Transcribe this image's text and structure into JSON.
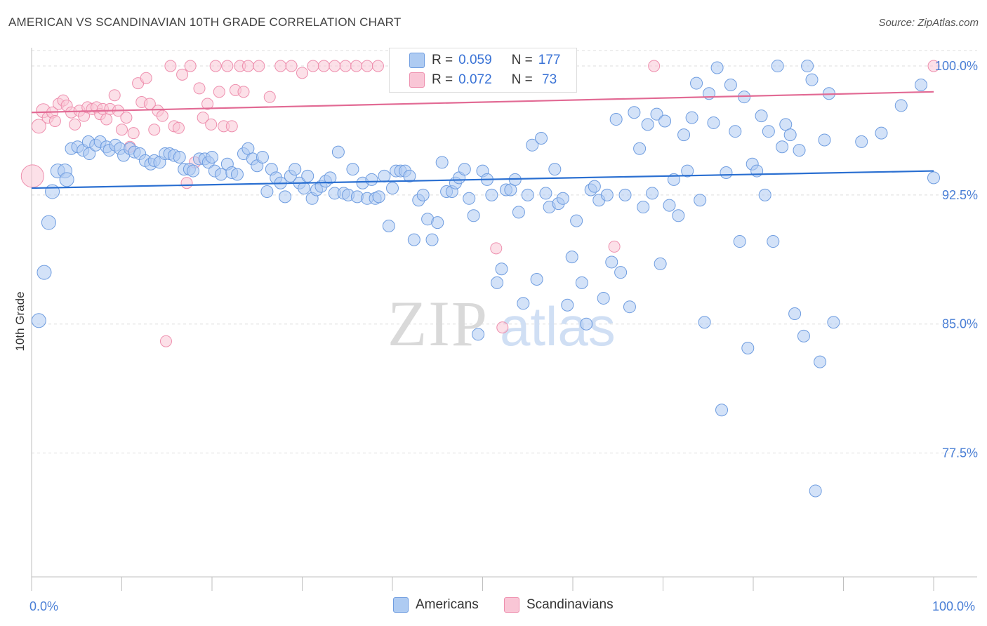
{
  "header": {
    "title": "AMERICAN VS SCANDINAVIAN 10TH GRADE CORRELATION CHART",
    "source": "Source: ZipAtlas.com"
  },
  "legend": {
    "rows": [
      {
        "r_label": "R =",
        "r_value": "0.059",
        "n_label": "N =",
        "n_value": "177"
      },
      {
        "r_label": "R =",
        "r_value": "0.072",
        "n_label": "N =",
        "n_value": " 73"
      }
    ],
    "bottom": [
      "Americans",
      "Scandinavians"
    ]
  },
  "colors": {
    "americans_fill": "#aecbf2",
    "americans_stroke": "#6f9de0",
    "americans_line": "#2a6fd1",
    "scandinavians_fill": "#f9c6d6",
    "scandinavians_stroke": "#ee8fae",
    "scandinavians_line": "#e26a94",
    "tick_label": "#4a7fd6"
  },
  "watermark": {
    "zip": "ZIP",
    "atlas": "atlas"
  },
  "chart_data": {
    "type": "scatter",
    "title": "AMERICAN VS SCANDINAVIAN 10TH GRADE CORRELATION CHART",
    "xlabel": "",
    "ylabel": "10th Grade",
    "xlim": [
      0,
      100
    ],
    "ylim": [
      70.3,
      100.9
    ],
    "x_tick_labels": [
      "0.0%",
      "100.0%"
    ],
    "y_ticks": [
      77.5,
      85.0,
      92.5,
      100.0
    ],
    "y_tick_labels": [
      "77.5%",
      "85.0%",
      "92.5%",
      "100.0%"
    ],
    "grid": "horizontal dashed",
    "legend_position": "top-center",
    "series": [
      {
        "name": "Americans",
        "r": 0.059,
        "n": 177,
        "trend": {
          "x": [
            0,
            100
          ],
          "y": [
            92.9,
            93.9
          ]
        },
        "points": [
          [
            0.8,
            85.2
          ],
          [
            1.4,
            88.0
          ],
          [
            1.9,
            90.9
          ],
          [
            2.3,
            92.7
          ],
          [
            2.9,
            93.9
          ],
          [
            3.7,
            93.9
          ],
          [
            3.9,
            93.4
          ],
          [
            4.4,
            95.2
          ],
          [
            5.1,
            95.3
          ],
          [
            5.7,
            95.1
          ],
          [
            6.3,
            95.6
          ],
          [
            6.4,
            94.9
          ],
          [
            7.1,
            95.4
          ],
          [
            7.6,
            95.6
          ],
          [
            8.3,
            95.3
          ],
          [
            8.6,
            95.1
          ],
          [
            9.3,
            95.4
          ],
          [
            9.8,
            95.2
          ],
          [
            10.2,
            94.8
          ],
          [
            10.9,
            95.2
          ],
          [
            11.4,
            95.0
          ],
          [
            12.0,
            94.9
          ],
          [
            12.6,
            94.5
          ],
          [
            13.2,
            94.3
          ],
          [
            13.6,
            94.5
          ],
          [
            14.2,
            94.4
          ],
          [
            14.8,
            94.9
          ],
          [
            15.3,
            94.9
          ],
          [
            15.8,
            94.8
          ],
          [
            16.4,
            94.7
          ],
          [
            16.9,
            94.0
          ],
          [
            17.5,
            94.0
          ],
          [
            17.9,
            93.9
          ],
          [
            18.6,
            94.6
          ],
          [
            19.2,
            94.6
          ],
          [
            19.6,
            94.4
          ],
          [
            20.0,
            94.7
          ],
          [
            20.3,
            93.9
          ],
          [
            21.0,
            93.7
          ],
          [
            21.7,
            94.3
          ],
          [
            22.2,
            93.8
          ],
          [
            22.8,
            93.7
          ],
          [
            23.5,
            94.9
          ],
          [
            24.0,
            95.2
          ],
          [
            24.5,
            94.6
          ],
          [
            25.0,
            94.2
          ],
          [
            25.6,
            94.7
          ],
          [
            26.1,
            92.7
          ],
          [
            26.6,
            94.0
          ],
          [
            27.1,
            93.5
          ],
          [
            27.6,
            93.2
          ],
          [
            28.1,
            92.4
          ],
          [
            28.7,
            93.6
          ],
          [
            29.2,
            94.0
          ],
          [
            29.7,
            93.2
          ],
          [
            30.2,
            92.9
          ],
          [
            30.6,
            93.6
          ],
          [
            31.1,
            92.3
          ],
          [
            31.6,
            92.8
          ],
          [
            32.1,
            93.0
          ],
          [
            32.6,
            93.3
          ],
          [
            33.1,
            93.5
          ],
          [
            33.6,
            92.6
          ],
          [
            34.0,
            95.0
          ],
          [
            34.6,
            92.6
          ],
          [
            35.1,
            92.5
          ],
          [
            35.6,
            94.0
          ],
          [
            36.1,
            92.4
          ],
          [
            36.7,
            93.2
          ],
          [
            37.2,
            92.3
          ],
          [
            37.7,
            93.4
          ],
          [
            38.1,
            92.3
          ],
          [
            38.5,
            92.4
          ],
          [
            39.1,
            93.6
          ],
          [
            39.6,
            90.7
          ],
          [
            40.0,
            92.9
          ],
          [
            40.4,
            93.9
          ],
          [
            40.9,
            93.9
          ],
          [
            41.4,
            93.9
          ],
          [
            41.9,
            93.6
          ],
          [
            42.4,
            89.9
          ],
          [
            42.9,
            92.2
          ],
          [
            43.4,
            92.5
          ],
          [
            43.9,
            91.1
          ],
          [
            44.4,
            89.9
          ],
          [
            45.0,
            90.9
          ],
          [
            45.5,
            94.4
          ],
          [
            46.0,
            92.7
          ],
          [
            46.6,
            92.7
          ],
          [
            47.0,
            93.2
          ],
          [
            47.4,
            93.5
          ],
          [
            48.0,
            94.0
          ],
          [
            48.5,
            92.3
          ],
          [
            49.0,
            91.3
          ],
          [
            49.5,
            84.4
          ],
          [
            50.0,
            93.9
          ],
          [
            50.5,
            93.4
          ],
          [
            51.0,
            92.5
          ],
          [
            51.6,
            87.4
          ],
          [
            52.1,
            88.2
          ],
          [
            52.6,
            92.8
          ],
          [
            53.1,
            92.8
          ],
          [
            53.6,
            93.4
          ],
          [
            54.0,
            91.5
          ],
          [
            54.5,
            86.2
          ],
          [
            55.0,
            92.5
          ],
          [
            55.5,
            95.4
          ],
          [
            56.0,
            87.6
          ],
          [
            56.5,
            95.8
          ],
          [
            57.0,
            92.6
          ],
          [
            57.4,
            91.8
          ],
          [
            58.0,
            94.0
          ],
          [
            58.4,
            92.0
          ],
          [
            58.9,
            92.3
          ],
          [
            59.4,
            86.1
          ],
          [
            59.9,
            88.9
          ],
          [
            60.4,
            91.0
          ],
          [
            61.0,
            87.4
          ],
          [
            61.5,
            85.0
          ],
          [
            62.0,
            92.8
          ],
          [
            62.4,
            93.0
          ],
          [
            62.9,
            92.2
          ],
          [
            63.4,
            86.5
          ],
          [
            63.8,
            92.5
          ],
          [
            64.3,
            88.6
          ],
          [
            64.8,
            96.9
          ],
          [
            65.3,
            88.0
          ],
          [
            65.8,
            92.5
          ],
          [
            66.3,
            86.0
          ],
          [
            66.8,
            97.3
          ],
          [
            67.4,
            95.2
          ],
          [
            67.8,
            91.8
          ],
          [
            68.3,
            96.6
          ],
          [
            68.8,
            92.6
          ],
          [
            69.3,
            97.2
          ],
          [
            69.7,
            88.5
          ],
          [
            70.2,
            96.8
          ],
          [
            70.7,
            91.9
          ],
          [
            71.2,
            93.4
          ],
          [
            71.7,
            91.3
          ],
          [
            72.3,
            96.0
          ],
          [
            72.7,
            93.9
          ],
          [
            73.2,
            97.0
          ],
          [
            73.7,
            99.0
          ],
          [
            74.1,
            92.2
          ],
          [
            74.6,
            85.1
          ],
          [
            75.1,
            98.4
          ],
          [
            75.6,
            96.7
          ],
          [
            76.0,
            99.9
          ],
          [
            76.5,
            80.0
          ],
          [
            77.0,
            93.8
          ],
          [
            77.5,
            98.9
          ],
          [
            78.0,
            96.2
          ],
          [
            78.5,
            89.8
          ],
          [
            79.0,
            98.2
          ],
          [
            79.4,
            83.6
          ],
          [
            79.9,
            94.3
          ],
          [
            80.4,
            93.9
          ],
          [
            80.9,
            97.1
          ],
          [
            81.3,
            92.5
          ],
          [
            81.7,
            96.2
          ],
          [
            82.2,
            89.8
          ],
          [
            82.7,
            100.0
          ],
          [
            83.2,
            95.3
          ],
          [
            83.6,
            96.6
          ],
          [
            84.1,
            96.0
          ],
          [
            84.6,
            85.6
          ],
          [
            85.1,
            95.1
          ],
          [
            85.6,
            84.3
          ],
          [
            86.0,
            100.0
          ],
          [
            86.5,
            99.2
          ],
          [
            86.9,
            75.3
          ],
          [
            87.4,
            82.8
          ],
          [
            87.9,
            95.7
          ],
          [
            88.4,
            98.4
          ],
          [
            88.9,
            85.1
          ],
          [
            92.0,
            95.6
          ],
          [
            94.2,
            96.1
          ],
          [
            96.4,
            97.7
          ],
          [
            98.6,
            98.9
          ],
          [
            100.0,
            93.5
          ]
        ]
      },
      {
        "name": "Scandinavians",
        "r": 0.072,
        "n": 73,
        "trend": {
          "x": [
            0,
            100
          ],
          "y": [
            97.3,
            98.5
          ]
        },
        "points": [
          [
            0.1,
            93.6
          ],
          [
            0.8,
            96.5
          ],
          [
            1.3,
            97.4
          ],
          [
            1.8,
            97.0
          ],
          [
            2.3,
            97.3
          ],
          [
            2.6,
            96.8
          ],
          [
            3.0,
            97.8
          ],
          [
            3.5,
            98.0
          ],
          [
            3.9,
            97.7
          ],
          [
            4.4,
            97.3
          ],
          [
            4.8,
            96.6
          ],
          [
            5.3,
            97.4
          ],
          [
            5.8,
            97.1
          ],
          [
            6.2,
            97.6
          ],
          [
            6.7,
            97.5
          ],
          [
            7.2,
            97.6
          ],
          [
            7.6,
            97.2
          ],
          [
            7.9,
            97.5
          ],
          [
            8.3,
            96.9
          ],
          [
            8.7,
            97.5
          ],
          [
            9.2,
            98.3
          ],
          [
            9.6,
            97.4
          ],
          [
            10.0,
            96.3
          ],
          [
            10.5,
            97.0
          ],
          [
            10.9,
            95.3
          ],
          [
            11.3,
            96.1
          ],
          [
            11.8,
            99.0
          ],
          [
            12.2,
            97.9
          ],
          [
            12.7,
            99.3
          ],
          [
            13.1,
            97.8
          ],
          [
            13.6,
            96.3
          ],
          [
            14.0,
            97.4
          ],
          [
            14.5,
            97.1
          ],
          [
            14.9,
            84.0
          ],
          [
            15.4,
            100.0
          ],
          [
            15.8,
            96.5
          ],
          [
            16.3,
            96.4
          ],
          [
            16.7,
            99.5
          ],
          [
            17.2,
            93.2
          ],
          [
            17.6,
            100.0
          ],
          [
            18.1,
            94.4
          ],
          [
            18.6,
            98.7
          ],
          [
            19.0,
            97.0
          ],
          [
            19.5,
            97.8
          ],
          [
            19.9,
            96.6
          ],
          [
            20.4,
            100.0
          ],
          [
            20.8,
            98.5
          ],
          [
            21.3,
            96.5
          ],
          [
            21.7,
            100.0
          ],
          [
            22.2,
            96.5
          ],
          [
            22.6,
            98.6
          ],
          [
            23.1,
            100.0
          ],
          [
            23.5,
            98.5
          ],
          [
            24.0,
            100.0
          ],
          [
            25.2,
            100.0
          ],
          [
            26.4,
            98.2
          ],
          [
            27.6,
            100.0
          ],
          [
            28.8,
            100.0
          ],
          [
            30.0,
            99.6
          ],
          [
            31.2,
            100.0
          ],
          [
            32.4,
            100.0
          ],
          [
            33.6,
            100.0
          ],
          [
            34.8,
            100.0
          ],
          [
            36.0,
            100.0
          ],
          [
            37.2,
            100.0
          ],
          [
            38.4,
            100.0
          ],
          [
            41.0,
            100.0
          ],
          [
            51.5,
            89.4
          ],
          [
            52.2,
            84.8
          ],
          [
            57.0,
            100.0
          ],
          [
            64.6,
            89.5
          ],
          [
            69.0,
            100.0
          ],
          [
            100.0,
            100.0
          ]
        ]
      }
    ]
  }
}
